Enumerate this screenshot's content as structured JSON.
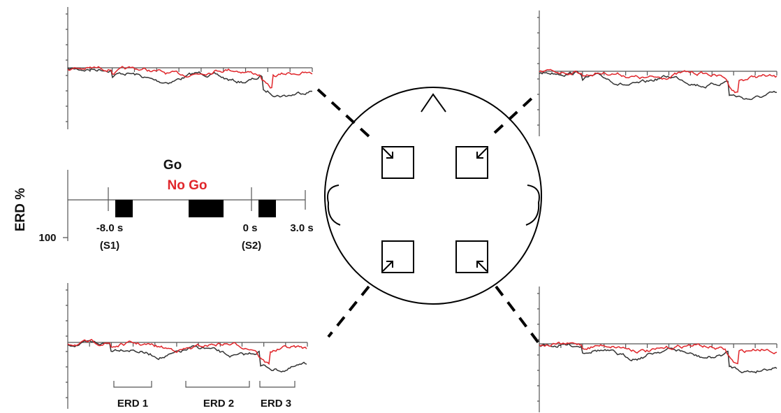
{
  "legend": {
    "go": "Go",
    "no_go": "No Go"
  },
  "axis": {
    "y_label": "ERD %",
    "y_tick": "100"
  },
  "timeline": {
    "s1_time": "-8.0 s",
    "s1_label": "(S1)",
    "s2_time": "0 s",
    "s2_label": "(S2)",
    "end_time": "3.0 s"
  },
  "windows": [
    "ERD 1",
    "ERD 2",
    "ERD 3"
  ]
}
